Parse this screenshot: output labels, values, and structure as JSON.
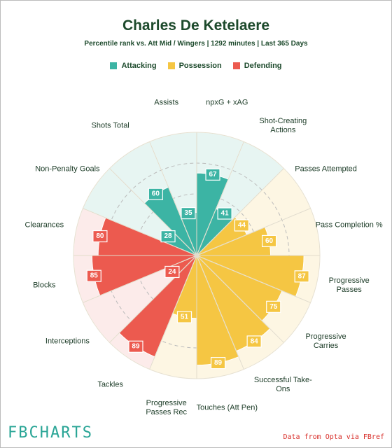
{
  "chart_data": {
    "type": "polar_bar",
    "title": "Charles De Ketelaere",
    "subtitle": "Percentile rank vs. Att Mid / Wingers | 1292 minutes | Last 365 Days",
    "categories": [
      "npxG + xAG",
      "Shot-Creating Actions",
      "Passes Attempted",
      "Pass Completion %",
      "Progressive Passes",
      "Progressive Carries",
      "Successful Take-Ons",
      "Touches (Att Pen)",
      "Progressive Passes Rec",
      "Tackles",
      "Interceptions",
      "Blocks",
      "Clearances",
      "Non-Penalty Goals",
      "Shots Total",
      "Assists"
    ],
    "series": [
      {
        "name": "Attacking",
        "color": "#3cb4a4",
        "background": "#e7f5f2",
        "values": [
          67,
          41,
          null,
          null,
          null,
          null,
          null,
          null,
          null,
          null,
          null,
          null,
          null,
          28,
          60,
          35
        ]
      },
      {
        "name": "Possession",
        "color": "#f5c643",
        "background": "#fdf6e3",
        "values": [
          null,
          null,
          44,
          60,
          87,
          75,
          84,
          89,
          51,
          null,
          null,
          null,
          null,
          null,
          null,
          null
        ]
      },
      {
        "name": "Defending",
        "color": "#ec5a4f",
        "background": "#fcebea",
        "values": [
          null,
          null,
          null,
          null,
          null,
          null,
          null,
          null,
          null,
          89,
          24,
          85,
          80,
          null,
          null,
          null
        ]
      }
    ],
    "rlim": [
      0,
      100
    ],
    "footer_brand": "FBCHARTS",
    "source": "Data from Opta via FBref"
  }
}
